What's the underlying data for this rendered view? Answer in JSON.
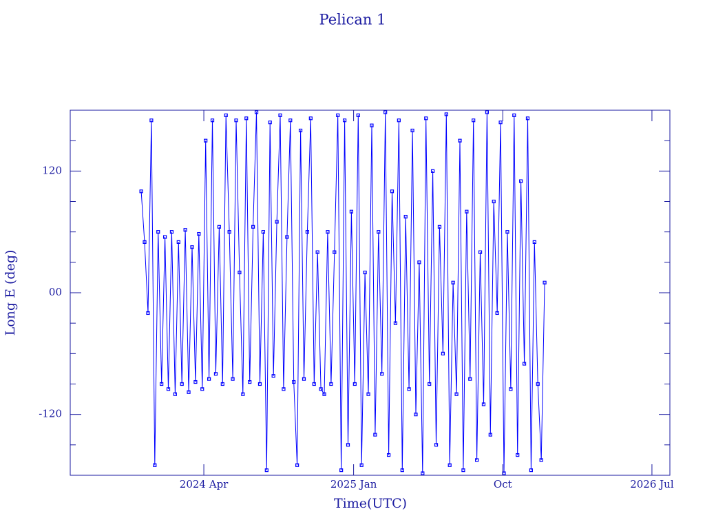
{
  "chart_data": {
    "type": "line",
    "title": "Pelican 1",
    "x_label": "Time(UTC)",
    "y_label": "Long E (deg)",
    "color": "#0000ff",
    "marker": "square",
    "xlim": [
      2023.579,
      2026.586
    ],
    "xticks": [
      {
        "value": 2024.249,
        "label": "2024 Apr"
      },
      {
        "value": 2025.0,
        "label": "2025 Jan"
      },
      {
        "value": 2025.748,
        "label": "Oct"
      },
      {
        "value": 2026.496,
        "label": "2026 Jul"
      }
    ],
    "ylim": [
      -180,
      180
    ],
    "yticks": [
      -120,
      {
        "value": 0,
        "label": "00"
      },
      120
    ],
    "yminorticks": [
      -150,
      -90,
      -60,
      -30,
      30,
      60,
      90,
      150
    ],
    "x": [
      2023.935,
      2023.952,
      2023.969,
      2023.986,
      2024.003,
      2024.02,
      2024.037,
      2024.054,
      2024.071,
      2024.088,
      2024.105,
      2024.122,
      2024.139,
      2024.156,
      2024.173,
      2024.19,
      2024.207,
      2024.224,
      2024.241,
      2024.258,
      2024.275,
      2024.292,
      2024.309,
      2024.326,
      2024.343,
      2024.36,
      2024.377,
      2024.394,
      2024.411,
      2024.428,
      2024.445,
      2024.462,
      2024.479,
      2024.496,
      2024.513,
      2024.53,
      2024.547,
      2024.564,
      2024.581,
      2024.598,
      2024.615,
      2024.632,
      2024.649,
      2024.666,
      2024.683,
      2024.7,
      2024.717,
      2024.734,
      2024.751,
      2024.768,
      2024.785,
      2024.802,
      2024.819,
      2024.836,
      2024.853,
      2024.87,
      2024.887,
      2024.904,
      2024.921,
      2024.938,
      2024.955,
      2024.972,
      2024.989,
      2025.006,
      2025.023,
      2025.04,
      2025.057,
      2025.074,
      2025.091,
      2025.108,
      2025.125,
      2025.142,
      2025.159,
      2025.176,
      2025.193,
      2025.21,
      2025.227,
      2025.244,
      2025.261,
      2025.278,
      2025.295,
      2025.312,
      2025.329,
      2025.346,
      2025.363,
      2025.38,
      2025.397,
      2025.414,
      2025.431,
      2025.448,
      2025.465,
      2025.482,
      2025.499,
      2025.516,
      2025.533,
      2025.55,
      2025.567,
      2025.584,
      2025.601,
      2025.618,
      2025.635,
      2025.652,
      2025.669,
      2025.686,
      2025.703,
      2025.72,
      2025.737,
      2025.754,
      2025.771,
      2025.788,
      2025.805,
      2025.822,
      2025.839,
      2025.856,
      2025.873,
      2025.89,
      2025.907,
      2025.924,
      2025.941,
      2025.958
    ],
    "values": [
      100,
      50,
      -20,
      170,
      -170,
      60,
      -90,
      55,
      -95,
      60,
      -100,
      50,
      -90,
      62,
      -98,
      45,
      -88,
      58,
      -95,
      150,
      -85,
      170,
      -80,
      65,
      -90,
      175,
      60,
      -85,
      170,
      20,
      -100,
      172,
      -88,
      65,
      178,
      -90,
      60,
      -175,
      168,
      -82,
      70,
      175,
      -95,
      55,
      170,
      -88,
      -170,
      160,
      -85,
      60,
      172,
      -90,
      40,
      -95,
      -100,
      60,
      -90,
      40,
      175,
      -175,
      170,
      -150,
      80,
      -90,
      175,
      -170,
      20,
      -100,
      165,
      -140,
      60,
      -80,
      178,
      -160,
      100,
      -30,
      170,
      -175,
      75,
      -95,
      160,
      -120,
      30,
      -178,
      172,
      -90,
      120,
      -150,
      65,
      -60,
      176,
      -170,
      10,
      -100,
      150,
      -175,
      80,
      -85,
      170,
      -165,
      40,
      -110,
      178,
      -140,
      90,
      -20,
      168,
      -178,
      60,
      -95,
      175,
      -160,
      110,
      -70,
      172,
      -175,
      50,
      -90,
      -165,
      10
    ]
  }
}
